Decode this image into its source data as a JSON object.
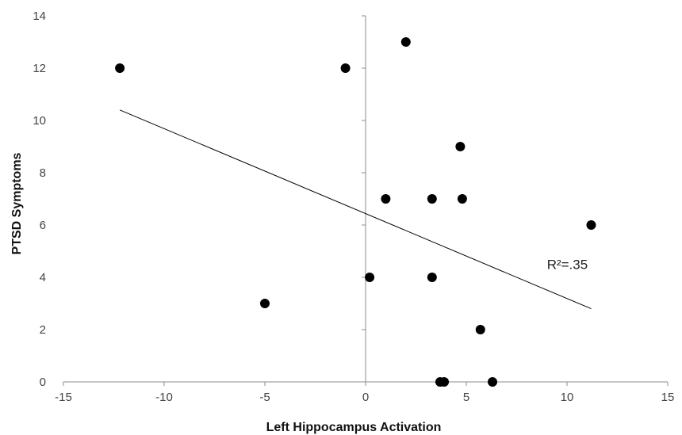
{
  "chart_data": {
    "type": "scatter",
    "title": "",
    "xlabel": "Left Hippocampus Activation",
    "ylabel": "PTSD Symptoms",
    "xlim": [
      -15,
      15
    ],
    "ylim": [
      0,
      14
    ],
    "x_ticks": [
      -15,
      -10,
      -5,
      0,
      5,
      10,
      15
    ],
    "y_ticks": [
      0,
      2,
      4,
      6,
      8,
      10,
      12,
      14
    ],
    "grid": false,
    "legend": "none",
    "point_color": "#000000",
    "points": [
      {
        "x": -12.2,
        "y": 12
      },
      {
        "x": -1.0,
        "y": 12
      },
      {
        "x": 2.0,
        "y": 13
      },
      {
        "x": -5.0,
        "y": 3
      },
      {
        "x": 0.2,
        "y": 4
      },
      {
        "x": 1.0,
        "y": 7
      },
      {
        "x": 3.3,
        "y": 7
      },
      {
        "x": 3.3,
        "y": 4
      },
      {
        "x": 4.7,
        "y": 9
      },
      {
        "x": 4.8,
        "y": 7
      },
      {
        "x": 5.7,
        "y": 2
      },
      {
        "x": 11.2,
        "y": 6
      },
      {
        "x": 3.7,
        "y": 0
      },
      {
        "x": 3.9,
        "y": 0
      },
      {
        "x": 6.3,
        "y": 0
      }
    ],
    "trendline": {
      "x": [
        -12.2,
        11.2
      ],
      "y": [
        10.4,
        2.8
      ]
    },
    "annotation": {
      "text": "R²=.35",
      "x": 10.5,
      "y": 4.5
    }
  }
}
